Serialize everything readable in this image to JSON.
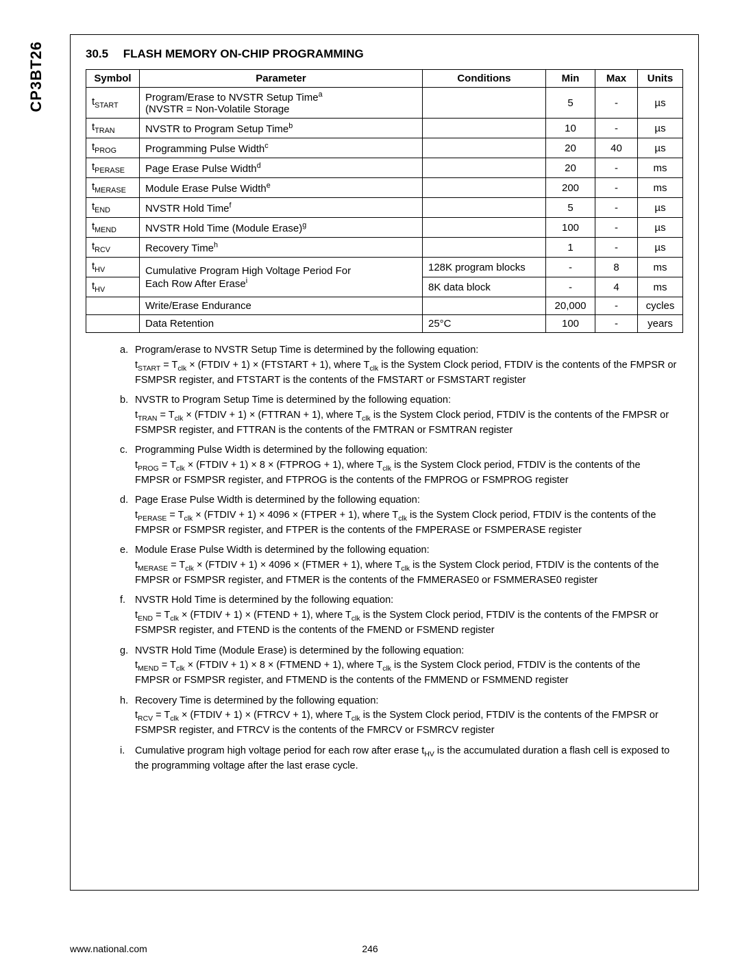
{
  "side_label": "CP3BT26",
  "section_number": "30.5",
  "section_title": "FLASH MEMORY ON-CHIP PROGRAMMING",
  "table": {
    "headers": {
      "symbol": "Symbol",
      "parameter": "Parameter",
      "conditions": "Conditions",
      "min": "Min",
      "max": "Max",
      "units": "Units"
    },
    "rows": [
      {
        "sym_prefix": "t",
        "sym_sub": "START",
        "param": "Program/Erase to NVSTR Setup Time",
        "sup": "a",
        "param2": "(NVSTR = Non-Volatile Storage",
        "cond": "",
        "min": "5",
        "max": "-",
        "units": "µs"
      },
      {
        "sym_prefix": "t",
        "sym_sub": "TRAN",
        "param": "NVSTR to Program Setup Time",
        "sup": "b",
        "cond": "",
        "min": "10",
        "max": "-",
        "units": "µs"
      },
      {
        "sym_prefix": "t",
        "sym_sub": "PROG",
        "param": "Programming Pulse Width",
        "sup": "c",
        "cond": "",
        "min": "20",
        "max": "40",
        "units": "µs"
      },
      {
        "sym_prefix": "t",
        "sym_sub": "PERASE",
        "param": "Page Erase Pulse Width",
        "sup": "d",
        "cond": "",
        "min": "20",
        "max": "-",
        "units": "ms"
      },
      {
        "sym_prefix": "t",
        "sym_sub": "MERASE",
        "param": "Module Erase Pulse Width",
        "sup": "e",
        "cond": "",
        "min": "200",
        "max": "-",
        "units": "ms"
      },
      {
        "sym_prefix": "t",
        "sym_sub": "END",
        "param": "NVSTR Hold Time",
        "sup": "f",
        "cond": "",
        "min": "5",
        "max": "-",
        "units": "µs"
      },
      {
        "sym_prefix": "t",
        "sym_sub": "MEND",
        "param": "NVSTR Hold Time (Module Erase)",
        "sup": "g",
        "cond": "",
        "min": "100",
        "max": "-",
        "units": "µs"
      },
      {
        "sym_prefix": "t",
        "sym_sub": "RCV",
        "param": "Recovery Time",
        "sup": "h",
        "cond": "",
        "min": "1",
        "max": "-",
        "units": "µs"
      },
      {
        "sym_prefix": "t",
        "sym_sub": "HV",
        "param": "Cumulative Program High Voltage Period For",
        "param_cont": "Each Row After Erase",
        "sup": "i",
        "cond": "128K program blocks",
        "min": "-",
        "max": "8",
        "units": "ms"
      },
      {
        "sym_prefix": "t",
        "sym_sub": "HV",
        "cond": "8K data block",
        "min": "-",
        "max": "4",
        "units": "ms"
      },
      {
        "sym_prefix": "",
        "sym_sub": "",
        "param": "Write/Erase Endurance",
        "cond": "",
        "min": "20,000",
        "max": "-",
        "units": "cycles"
      },
      {
        "sym_prefix": "",
        "sym_sub": "",
        "param": "Data Retention",
        "cond": "25°C",
        "min": "100",
        "max": "-",
        "units": "years"
      }
    ]
  },
  "notes": [
    {
      "marker": "a.",
      "heading": "Program/erase to NVSTR Setup Time is determined by the following equation:",
      "eq_sym": "t",
      "eq_sub": "START",
      "eq_rhs": " = T",
      "eq_tsub": "clk",
      "eq_tail": " × (FTDIV + 1) × (FTSTART + 1), where T",
      "eq_tail2": " is the System Clock period, FTDIV is the contents of the FMPSR or FSMPSR register, and FTSTART is the contents of the FMSTART or FSMSTART register"
    },
    {
      "marker": "b.",
      "heading": "NVSTR to Program Setup Time is determined by the following equation:",
      "eq_sym": "t",
      "eq_sub": "TRAN",
      "eq_rhs": " = T",
      "eq_tsub": "clk",
      "eq_tail": " × (FTDIV + 1) × (FTTRAN + 1), where T",
      "eq_tail2": " is the System Clock period, FTDIV is the contents of the FMPSR or FSMPSR register, and FTTRAN is the contents of the FMTRAN or FSMTRAN register"
    },
    {
      "marker": "c.",
      "heading": "Programming Pulse Width is determined by the following equation:",
      "eq_sym": "t",
      "eq_sub": "PROG",
      "eq_rhs": " = T",
      "eq_tsub": "clk",
      "eq_tail": " × (FTDIV + 1) × 8 × (FTPROG + 1), where T",
      "eq_tail2": " is the System Clock period, FTDIV is the contents of the FMPSR or FSMPSR register, and FTPROG is the contents of the FMPROG or FSMPROG register"
    },
    {
      "marker": "d.",
      "heading": "Page Erase Pulse Width is determined by the following equation:",
      "eq_sym": "t",
      "eq_sub": "PERASE",
      "eq_rhs": " = T",
      "eq_tsub": "clk",
      "eq_tail": " × (FTDIV + 1) × 4096 × (FTPER + 1), where T",
      "eq_tail2": " is the System Clock period, FTDIV is the contents of the FMPSR or FSMPSR register, and FTPER is the contents of the FMPERASE or FSMPERASE register"
    },
    {
      "marker": "e.",
      "heading": "Module Erase Pulse Width is determined by the following equation:",
      "eq_sym": "t",
      "eq_sub": "MERASE",
      "eq_rhs": " = T",
      "eq_tsub": "clk",
      "eq_tail": " × (FTDIV + 1) × 4096 × (FTMER + 1), where T",
      "eq_tail2": " is the System Clock period, FTDIV is the contents of the FMPSR or FSMPSR register, and FTMER is the contents of the FMMERASE0 or FSMMERASE0 register"
    },
    {
      "marker": "f.",
      "heading": "NVSTR Hold Time is determined by the following equation:",
      "eq_sym": "t",
      "eq_sub": "END",
      "eq_rhs": " = T",
      "eq_tsub": "clk",
      "eq_tail": " × (FTDIV + 1) × (FTEND + 1), where T",
      "eq_tail2": " is the System Clock period, FTDIV is the contents of the FMPSR or FSMPSR register, and FTEND is the contents of the FMEND or FSMEND register"
    },
    {
      "marker": "g.",
      "heading": "NVSTR Hold Time (Module Erase) is determined by the following equation:",
      "eq_sym": "t",
      "eq_sub": "MEND",
      "eq_rhs": " = T",
      "eq_tsub": "clk",
      "eq_tail": " × (FTDIV + 1) × 8 × (FTMEND + 1), where T",
      "eq_tail2": " is the System Clock period, FTDIV is the contents of the FMPSR or FSMPSR register, and FTMEND is the contents of the FMMEND or FSMMEND register"
    },
    {
      "marker": "h.",
      "heading": "Recovery Time is determined by the following equation:",
      "eq_sym": "t",
      "eq_sub": "RCV",
      "eq_rhs": " = T",
      "eq_tsub": "clk",
      "eq_tail": " × (FTDIV + 1) × (FTRCV + 1), where T",
      "eq_tail2": " is the System Clock period, FTDIV is the contents of the FMPSR or FSMPSR register, and FTRCV is the contents of the FMRCV or FSMRCV register"
    },
    {
      "marker": "i.",
      "heading": "Cumulative program high voltage period for each row after erase t",
      "heading_sub": "HV",
      "heading_tail": " is the accumulated duration a flash cell is exposed to the programming voltage after the last erase cycle."
    }
  ],
  "footer": {
    "url": "www.national.com",
    "page": "246"
  }
}
